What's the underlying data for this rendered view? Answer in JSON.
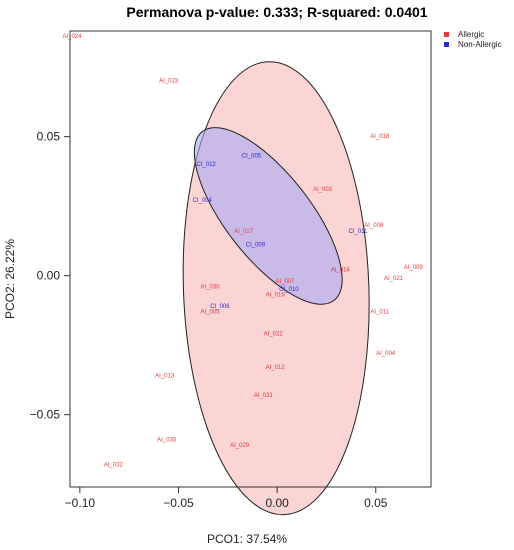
{
  "chart_data": {
    "type": "scatter",
    "title": "Permanova p-value: 0.333; R-squared: 0.0401",
    "xlabel": "PCO1: 37.54%",
    "ylabel": "PCO2: 26.22%",
    "xlim": [
      -0.105,
      0.078
    ],
    "ylim": [
      -0.076,
      0.088
    ],
    "xticks": [
      -0.1,
      -0.05,
      0.0,
      0.05
    ],
    "xtick_labels": [
      "−0.10",
      "−0.05",
      "0.00",
      "0.05"
    ],
    "yticks": [
      -0.05,
      0.0,
      0.05
    ],
    "ytick_labels": [
      "−0.05",
      "0.00",
      "0.05"
    ],
    "grid": false,
    "legend_position": "top-right",
    "series": [
      {
        "name": "Allergic",
        "color": "#e8383d",
        "fill": "#f9b8b8",
        "ellipse": {
          "cx": -0.0005,
          "cy": -0.0045,
          "rx": 0.047,
          "ry": 0.0815,
          "angle": -2
        },
        "points": [
          {
            "label": "AI_024",
            "x": -0.104,
            "y": 0.086
          },
          {
            "label": "AI_023",
            "x": -0.055,
            "y": 0.07
          },
          {
            "label": "AI_018",
            "x": 0.052,
            "y": 0.05
          },
          {
            "label": "AI_003",
            "x": 0.023,
            "y": 0.031
          },
          {
            "label": "AI_008",
            "x": 0.049,
            "y": 0.018
          },
          {
            "label": "AI_017",
            "x": -0.017,
            "y": 0.016
          },
          {
            "label": "AI_014",
            "x": 0.032,
            "y": 0.002
          },
          {
            "label": "AI_009",
            "x": 0.069,
            "y": 0.003
          },
          {
            "label": "AI_021",
            "x": 0.059,
            "y": -0.001
          },
          {
            "label": "AI_007",
            "x": 0.004,
            "y": -0.002
          },
          {
            "label": "AI_030",
            "x": -0.034,
            "y": -0.004
          },
          {
            "label": "AI_019",
            "x": -0.001,
            "y": -0.007
          },
          {
            "label": "AI_005",
            "x": -0.034,
            "y": -0.013
          },
          {
            "label": "AI_011",
            "x": 0.052,
            "y": -0.013
          },
          {
            "label": "AI_022",
            "x": -0.002,
            "y": -0.021
          },
          {
            "label": "AI_004",
            "x": 0.055,
            "y": -0.028
          },
          {
            "label": "AI_012",
            "x": -0.001,
            "y": -0.033
          },
          {
            "label": "AI_013",
            "x": -0.057,
            "y": -0.036
          },
          {
            "label": "AI_031",
            "x": -0.007,
            "y": -0.043
          },
          {
            "label": "AI_035",
            "x": -0.056,
            "y": -0.059
          },
          {
            "label": "AI_029",
            "x": -0.019,
            "y": -0.061
          },
          {
            "label": "AI_032",
            "x": -0.083,
            "y": -0.068
          }
        ]
      },
      {
        "name": "Non-Allergic",
        "color": "#2b2bd1",
        "fill": "#a9a9f3",
        "ellipse": {
          "cx": -0.0045,
          "cy": 0.0215,
          "rx": 0.0215,
          "ry": 0.0385,
          "angle": -38
        },
        "points": [
          {
            "label": "CI_005",
            "x": -0.013,
            "y": 0.043
          },
          {
            "label": "CI_012",
            "x": -0.036,
            "y": 0.04
          },
          {
            "label": "CI_004",
            "x": -0.038,
            "y": 0.027
          },
          {
            "label": "CI_009",
            "x": -0.011,
            "y": 0.011
          },
          {
            "label": "CI_011",
            "x": 0.041,
            "y": 0.016
          },
          {
            "label": "CI_010",
            "x": 0.006,
            "y": -0.005
          },
          {
            "label": "CI_006",
            "x": -0.029,
            "y": -0.011
          }
        ]
      }
    ]
  }
}
